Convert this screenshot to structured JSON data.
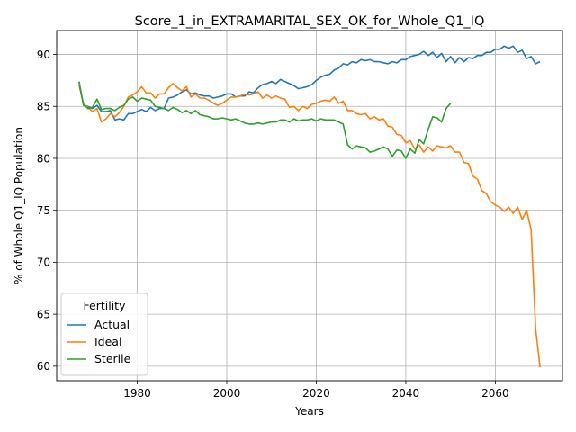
{
  "chart_data": {
    "type": "line",
    "title": "Score_1_in_EXTRAMARITAL_SEX_OK_for_Whole_Q1_IQ",
    "xlabel": "Years",
    "ylabel": "% of Whole Q1_IQ Population",
    "xlim": [
      1962,
      2075
    ],
    "ylim": [
      58.6,
      92.3
    ],
    "xticks": [
      1980,
      2000,
      2020,
      2040,
      2060
    ],
    "yticks": [
      60,
      65,
      70,
      75,
      80,
      85,
      90
    ],
    "grid": true,
    "legend": {
      "title": "Fertility",
      "placement": "lower-left"
    },
    "series": [
      {
        "name": "Actual",
        "color": "#1f77b4",
        "points": [
          [
            1967,
            87.4
          ],
          [
            1968,
            85.1
          ],
          [
            1969,
            85.0
          ],
          [
            1970,
            84.8
          ],
          [
            1971,
            85.1
          ],
          [
            1972,
            84.5
          ],
          [
            1973,
            84.5
          ],
          [
            1974,
            84.6
          ],
          [
            1975,
            83.7
          ],
          [
            1976,
            83.8
          ],
          [
            1977,
            83.7
          ],
          [
            1978,
            84.3
          ],
          [
            1979,
            84.3
          ],
          [
            1980,
            84.5
          ],
          [
            1981,
            84.7
          ],
          [
            1982,
            84.5
          ],
          [
            1983,
            84.9
          ],
          [
            1984,
            84.6
          ],
          [
            1985,
            84.8
          ],
          [
            1986,
            84.8
          ],
          [
            1987,
            85.8
          ],
          [
            1988,
            85.9
          ],
          [
            1989,
            86.1
          ],
          [
            1990,
            86.4
          ],
          [
            1991,
            86.6
          ],
          [
            1992,
            86.2
          ],
          [
            1993,
            86.3
          ],
          [
            1994,
            86.1
          ],
          [
            1995,
            86.0
          ],
          [
            1996,
            86.0
          ],
          [
            1997,
            85.8
          ],
          [
            1998,
            85.9
          ],
          [
            1999,
            86.0
          ],
          [
            2000,
            86.2
          ],
          [
            2001,
            86.2
          ],
          [
            2002,
            85.9
          ],
          [
            2003,
            86.0
          ],
          [
            2004,
            86.0
          ],
          [
            2005,
            86.4
          ],
          [
            2006,
            86.3
          ],
          [
            2007,
            86.8
          ],
          [
            2008,
            87.1
          ],
          [
            2009,
            87.2
          ],
          [
            2010,
            87.4
          ],
          [
            2011,
            87.2
          ],
          [
            2012,
            87.6
          ],
          [
            2013,
            87.4
          ],
          [
            2014,
            87.2
          ],
          [
            2015,
            87.0
          ],
          [
            2016,
            86.7
          ],
          [
            2017,
            86.8
          ],
          [
            2018,
            86.9
          ],
          [
            2019,
            87.1
          ],
          [
            2020,
            87.5
          ],
          [
            2021,
            87.8
          ],
          [
            2022,
            88.0
          ],
          [
            2023,
            88.1
          ],
          [
            2024,
            88.5
          ],
          [
            2025,
            88.7
          ],
          [
            2026,
            89.1
          ],
          [
            2027,
            89.0
          ],
          [
            2028,
            89.3
          ],
          [
            2029,
            89.2
          ],
          [
            2030,
            89.5
          ],
          [
            2031,
            89.4
          ],
          [
            2032,
            89.5
          ],
          [
            2033,
            89.3
          ],
          [
            2034,
            89.3
          ],
          [
            2035,
            89.2
          ],
          [
            2036,
            89.1
          ],
          [
            2037,
            89.3
          ],
          [
            2038,
            89.2
          ],
          [
            2039,
            89.5
          ],
          [
            2040,
            89.5
          ],
          [
            2041,
            89.8
          ],
          [
            2042,
            89.9
          ],
          [
            2043,
            90.0
          ],
          [
            2044,
            90.3
          ],
          [
            2045,
            89.9
          ],
          [
            2046,
            90.2
          ],
          [
            2047,
            89.7
          ],
          [
            2048,
            90.1
          ],
          [
            2049,
            89.3
          ],
          [
            2050,
            89.8
          ],
          [
            2051,
            89.2
          ],
          [
            2052,
            89.7
          ],
          [
            2053,
            89.3
          ],
          [
            2054,
            89.7
          ],
          [
            2055,
            89.6
          ],
          [
            2056,
            89.9
          ],
          [
            2057,
            89.9
          ],
          [
            2058,
            90.2
          ],
          [
            2059,
            90.2
          ],
          [
            2060,
            90.5
          ],
          [
            2061,
            90.5
          ],
          [
            2062,
            90.8
          ],
          [
            2063,
            90.6
          ],
          [
            2064,
            90.8
          ],
          [
            2065,
            90.2
          ],
          [
            2066,
            90.4
          ],
          [
            2067,
            89.6
          ],
          [
            2068,
            89.8
          ],
          [
            2069,
            89.1
          ],
          [
            2070,
            89.3
          ]
        ]
      },
      {
        "name": "Ideal",
        "color": "#ff7f0e",
        "points": [
          [
            1967,
            87.2
          ],
          [
            1968,
            85.2
          ],
          [
            1969,
            84.9
          ],
          [
            1970,
            84.5
          ],
          [
            1971,
            84.8
          ],
          [
            1972,
            83.5
          ],
          [
            1973,
            83.8
          ],
          [
            1974,
            84.3
          ],
          [
            1975,
            84.0
          ],
          [
            1976,
            84.4
          ],
          [
            1977,
            85.0
          ],
          [
            1978,
            85.9
          ],
          [
            1979,
            86.1
          ],
          [
            1980,
            86.4
          ],
          [
            1981,
            86.9
          ],
          [
            1982,
            86.3
          ],
          [
            1983,
            86.3
          ],
          [
            1984,
            85.8
          ],
          [
            1985,
            86.2
          ],
          [
            1986,
            86.2
          ],
          [
            1987,
            86.8
          ],
          [
            1988,
            87.2
          ],
          [
            1989,
            86.8
          ],
          [
            1990,
            86.5
          ],
          [
            1991,
            86.9
          ],
          [
            1992,
            85.9
          ],
          [
            1993,
            86.2
          ],
          [
            1994,
            85.8
          ],
          [
            1995,
            85.8
          ],
          [
            1996,
            85.6
          ],
          [
            1997,
            85.3
          ],
          [
            1998,
            85.1
          ],
          [
            1999,
            85.3
          ],
          [
            2000,
            85.6
          ],
          [
            2001,
            85.9
          ],
          [
            2002,
            85.9
          ],
          [
            2003,
            86.0
          ],
          [
            2004,
            86.2
          ],
          [
            2005,
            86.1
          ],
          [
            2006,
            86.2
          ],
          [
            2007,
            86.4
          ],
          [
            2008,
            85.8
          ],
          [
            2009,
            86.1
          ],
          [
            2010,
            85.8
          ],
          [
            2011,
            86.0
          ],
          [
            2012,
            85.8
          ],
          [
            2013,
            85.7
          ],
          [
            2014,
            84.9
          ],
          [
            2015,
            85.0
          ],
          [
            2016,
            84.6
          ],
          [
            2017,
            85.0
          ],
          [
            2018,
            84.8
          ],
          [
            2019,
            85.2
          ],
          [
            2020,
            85.3
          ],
          [
            2021,
            85.5
          ],
          [
            2022,
            85.6
          ],
          [
            2023,
            85.5
          ],
          [
            2024,
            85.9
          ],
          [
            2025,
            85.3
          ],
          [
            2026,
            85.5
          ],
          [
            2027,
            84.6
          ],
          [
            2028,
            84.6
          ],
          [
            2029,
            84.3
          ],
          [
            2030,
            84.2
          ],
          [
            2031,
            84.3
          ],
          [
            2032,
            83.8
          ],
          [
            2033,
            84.0
          ],
          [
            2034,
            83.7
          ],
          [
            2035,
            83.8
          ],
          [
            2036,
            83.1
          ],
          [
            2037,
            83.0
          ],
          [
            2038,
            82.3
          ],
          [
            2039,
            82.2
          ],
          [
            2040,
            81.5
          ],
          [
            2041,
            81.7
          ],
          [
            2042,
            80.9
          ],
          [
            2043,
            81.3
          ],
          [
            2044,
            80.6
          ],
          [
            2045,
            81.1
          ],
          [
            2046,
            80.7
          ],
          [
            2047,
            81.2
          ],
          [
            2048,
            81.1
          ],
          [
            2049,
            81.0
          ],
          [
            2050,
            81.2
          ],
          [
            2051,
            80.6
          ],
          [
            2052,
            80.6
          ],
          [
            2053,
            79.6
          ],
          [
            2054,
            79.5
          ],
          [
            2055,
            78.3
          ],
          [
            2056,
            78.0
          ],
          [
            2057,
            76.9
          ],
          [
            2058,
            76.6
          ],
          [
            2059,
            75.8
          ],
          [
            2060,
            75.5
          ],
          [
            2061,
            75.3
          ],
          [
            2062,
            74.9
          ],
          [
            2063,
            75.3
          ],
          [
            2064,
            74.7
          ],
          [
            2065,
            75.3
          ],
          [
            2066,
            74.1
          ],
          [
            2067,
            75.0
          ],
          [
            2068,
            73.1
          ],
          [
            2069,
            63.6
          ],
          [
            2070,
            59.9
          ]
        ]
      },
      {
        "name": "Sterile",
        "color": "#2ca02c",
        "points": [
          [
            1967,
            87.1
          ],
          [
            1968,
            85.2
          ],
          [
            1969,
            84.8
          ],
          [
            1970,
            84.9
          ],
          [
            1971,
            85.7
          ],
          [
            1972,
            84.7
          ],
          [
            1973,
            84.8
          ],
          [
            1974,
            84.8
          ],
          [
            1975,
            84.6
          ],
          [
            1976,
            84.9
          ],
          [
            1977,
            85.1
          ],
          [
            1978,
            85.7
          ],
          [
            1979,
            85.9
          ],
          [
            1980,
            85.5
          ],
          [
            1981,
            85.8
          ],
          [
            1982,
            85.7
          ],
          [
            1983,
            85.6
          ],
          [
            1984,
            85.0
          ],
          [
            1985,
            84.9
          ],
          [
            1986,
            84.8
          ],
          [
            1987,
            84.6
          ],
          [
            1988,
            84.9
          ],
          [
            1989,
            84.7
          ],
          [
            1990,
            84.4
          ],
          [
            1991,
            84.6
          ],
          [
            1992,
            84.3
          ],
          [
            1993,
            84.6
          ],
          [
            1994,
            84.2
          ],
          [
            1995,
            84.1
          ],
          [
            1996,
            84.0
          ],
          [
            1997,
            83.8
          ],
          [
            1998,
            83.8
          ],
          [
            1999,
            83.9
          ],
          [
            2000,
            83.8
          ],
          [
            2001,
            83.7
          ],
          [
            2002,
            83.8
          ],
          [
            2003,
            83.6
          ],
          [
            2004,
            83.4
          ],
          [
            2005,
            83.3
          ],
          [
            2006,
            83.3
          ],
          [
            2007,
            83.4
          ],
          [
            2008,
            83.3
          ],
          [
            2009,
            83.4
          ],
          [
            2010,
            83.5
          ],
          [
            2011,
            83.5
          ],
          [
            2012,
            83.7
          ],
          [
            2013,
            83.7
          ],
          [
            2014,
            83.5
          ],
          [
            2015,
            83.8
          ],
          [
            2016,
            83.6
          ],
          [
            2017,
            83.7
          ],
          [
            2018,
            83.7
          ],
          [
            2019,
            83.8
          ],
          [
            2020,
            83.6
          ],
          [
            2021,
            83.8
          ],
          [
            2022,
            83.7
          ],
          [
            2023,
            83.7
          ],
          [
            2024,
            83.7
          ],
          [
            2025,
            83.5
          ],
          [
            2026,
            83.3
          ],
          [
            2027,
            81.3
          ],
          [
            2028,
            80.9
          ],
          [
            2029,
            81.2
          ],
          [
            2030,
            81.1
          ],
          [
            2031,
            81.0
          ],
          [
            2032,
            80.6
          ],
          [
            2033,
            80.7
          ],
          [
            2034,
            80.9
          ],
          [
            2035,
            81.1
          ],
          [
            2036,
            80.9
          ],
          [
            2037,
            80.2
          ],
          [
            2038,
            80.8
          ],
          [
            2039,
            80.7
          ],
          [
            2040,
            80.0
          ],
          [
            2041,
            80.9
          ],
          [
            2042,
            80.5
          ],
          [
            2043,
            81.8
          ],
          [
            2044,
            81.4
          ],
          [
            2045,
            82.8
          ],
          [
            2046,
            84.0
          ],
          [
            2047,
            83.9
          ],
          [
            2048,
            83.5
          ],
          [
            2049,
            84.8
          ],
          [
            2050,
            85.3
          ]
        ]
      }
    ]
  }
}
